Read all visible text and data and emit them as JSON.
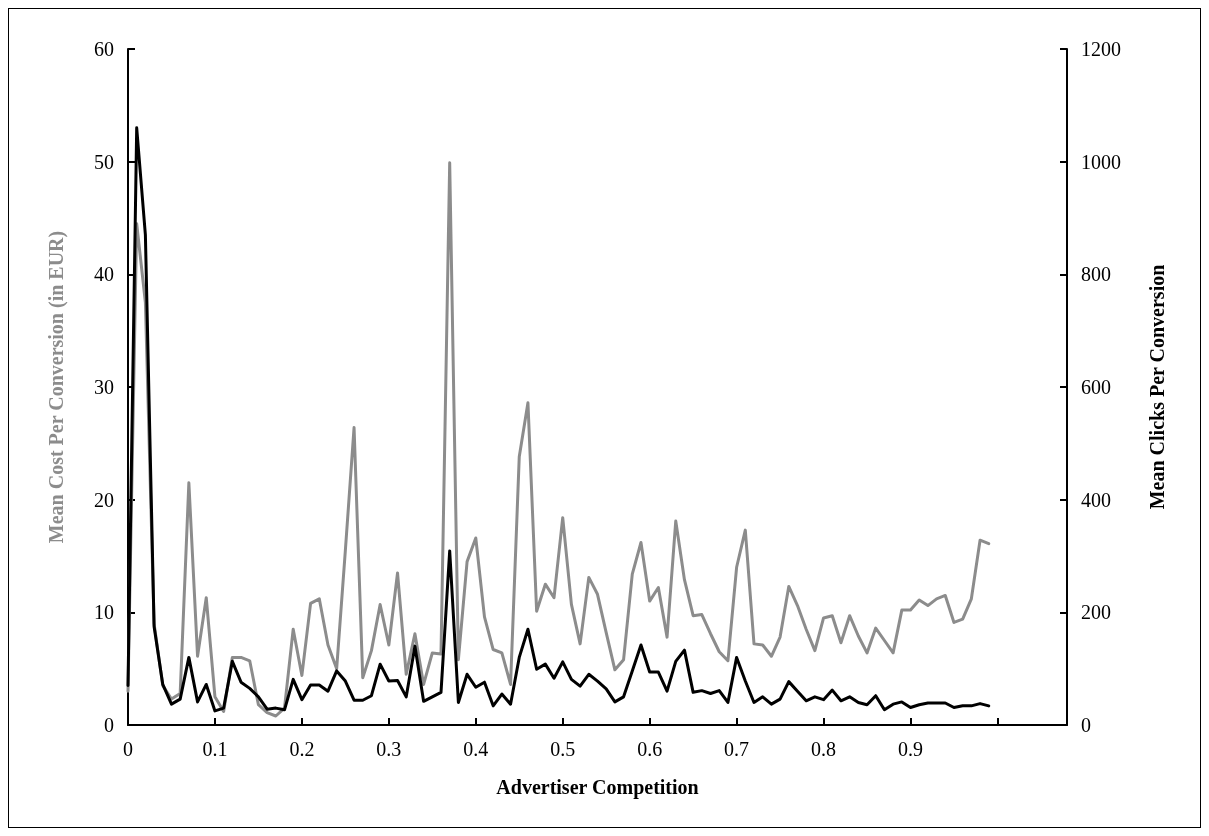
{
  "chart_data": {
    "type": "line",
    "xlabel": "Advertiser Competition",
    "ylabel": "Mean Cost Per Conversion (in EUR)",
    "y2label": "Mean Clicks Per Conversion",
    "x": [
      0,
      0.01,
      0.02,
      0.03,
      0.04,
      0.05,
      0.06,
      0.07,
      0.08,
      0.09,
      0.1,
      0.11,
      0.12,
      0.13,
      0.14,
      0.15,
      0.16,
      0.17,
      0.18,
      0.19,
      0.2,
      0.21,
      0.22,
      0.23,
      0.24,
      0.25,
      0.26,
      0.27,
      0.28,
      0.29,
      0.3,
      0.31,
      0.32,
      0.33,
      0.34,
      0.35,
      0.36,
      0.37,
      0.38,
      0.39,
      0.4,
      0.41,
      0.42,
      0.43,
      0.44,
      0.45,
      0.46,
      0.47,
      0.48,
      0.49,
      0.5,
      0.51,
      0.52,
      0.53,
      0.54,
      0.55,
      0.56,
      0.57,
      0.58,
      0.59,
      0.6,
      0.61,
      0.62,
      0.63,
      0.64,
      0.65,
      0.66,
      0.67,
      0.68,
      0.69,
      0.7,
      0.71,
      0.72,
      0.73,
      0.74,
      0.75,
      0.76,
      0.77,
      0.78,
      0.79,
      0.8,
      0.81,
      0.82,
      0.83,
      0.84,
      0.85,
      0.86,
      0.87,
      0.88,
      0.89,
      0.9,
      0.91,
      0.92,
      0.93,
      0.94,
      0.95,
      0.96,
      0.97,
      0.98,
      0.99
    ],
    "series": [
      {
        "color": "#8c8c8c",
        "values": [
          3,
          44.5,
          37.5,
          9,
          3.5,
          2.3,
          2.8,
          21.5,
          6.1,
          11.3,
          2.5,
          1.2,
          6,
          6,
          5.7,
          1.8,
          1.1,
          0.8,
          1.5,
          8.5,
          4.4,
          10.8,
          11.2,
          7.1,
          5,
          15.5,
          26.4,
          4.2,
          6.6,
          10.7,
          7.1,
          13.5,
          4.5,
          8.1,
          3.6,
          6.4,
          6.3,
          49.9,
          5.8,
          14.5,
          16.6,
          9.6,
          6.7,
          6.4,
          3.6,
          23.8,
          28.6,
          10.1,
          12.5,
          11.3,
          18.4,
          10.7,
          7.2,
          13.1,
          11.6,
          8.2,
          4.9,
          5.8,
          13.4,
          16.2,
          11,
          12.2,
          7.8,
          18.1,
          12.9,
          9.7,
          9.8,
          8.1,
          6.5,
          5.7,
          14,
          17.3,
          7.2,
          7.1,
          6.1,
          7.8,
          12.3,
          10.6,
          8.5,
          6.6,
          9.5,
          9.7,
          7.3,
          9.7,
          7.9,
          6.4,
          8.6,
          7.5,
          6.4,
          10.2,
          10.2,
          11.1,
          10.6,
          11.2,
          11.5,
          9.1,
          9.4,
          11.2,
          16.4,
          16.1
        ]
      },
      {
        "color": "#000000",
        "axis": "y2",
        "values": [
          70,
          1060,
          870,
          175,
          72,
          37,
          46,
          120,
          41,
          72,
          25,
          30,
          113,
          76,
          65,
          50,
          28,
          30,
          27,
          81,
          45,
          71,
          71,
          60,
          96,
          78,
          44,
          44,
          52,
          108,
          78,
          79,
          50,
          140,
          42,
          50,
          58,
          309,
          40,
          90,
          67,
          76,
          34,
          55,
          37,
          120,
          170,
          99,
          108,
          83,
          112,
          81,
          69,
          90,
          78,
          64,
          41,
          50,
          96,
          142,
          94,
          94,
          60,
          113,
          133,
          58,
          61,
          56,
          61,
          40,
          120,
          78,
          40,
          50,
          37,
          46,
          77,
          60,
          43,
          50,
          45,
          62,
          43,
          50,
          40,
          36,
          52,
          27,
          37,
          41,
          31,
          36,
          39,
          39,
          39,
          31,
          34,
          34,
          38,
          34
        ]
      }
    ],
    "xlim": [
      0,
      1.08
    ],
    "xticks": [
      0,
      0.1,
      0.2,
      0.3,
      0.4,
      0.5,
      0.6,
      0.7,
      0.8,
      0.9,
      {
        "value": 1,
        "label": null
      }
    ],
    "ylim": [
      0,
      60
    ],
    "yticks": [
      0,
      10,
      20,
      30,
      40,
      50,
      60
    ],
    "y2lim": [
      0,
      1200
    ],
    "y2ticks": [
      0,
      200,
      400,
      600,
      800,
      1000,
      1200
    ]
  }
}
